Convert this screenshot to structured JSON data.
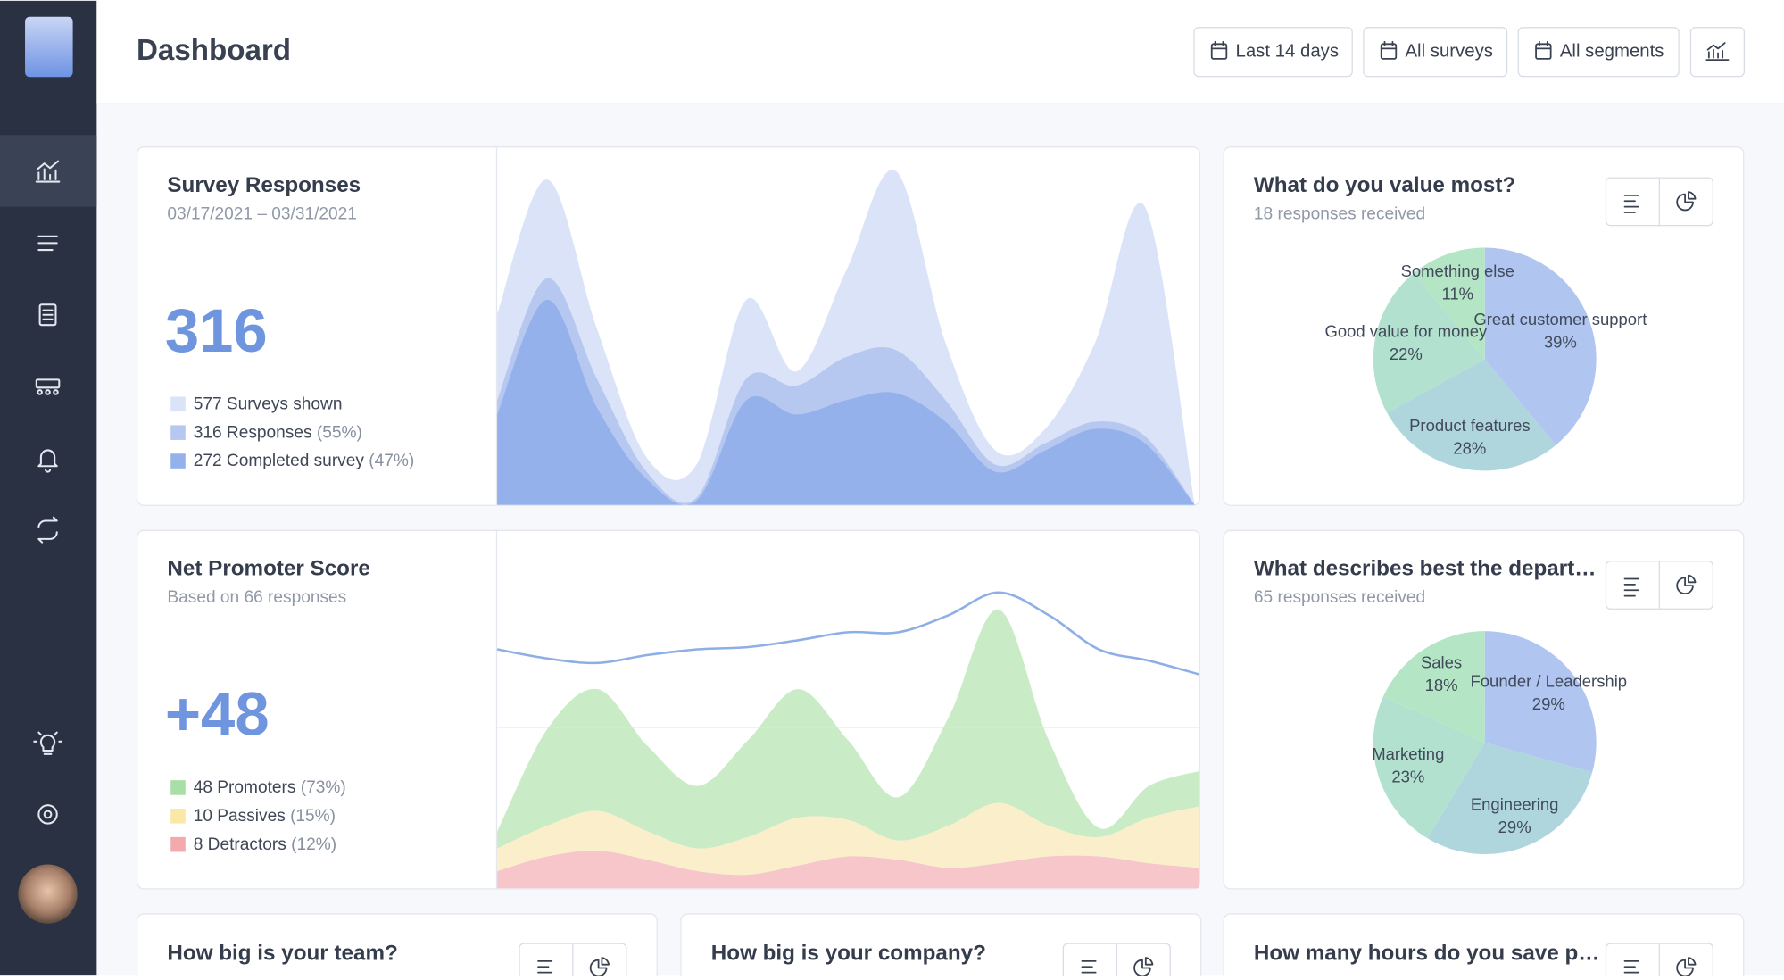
{
  "header": {
    "title": "Dashboard",
    "filters": [
      "Last 14 days",
      "All surveys",
      "All segments"
    ]
  },
  "survey_responses": {
    "title": "Survey Responses",
    "subtitle": "03/17/2021 – 03/31/2021",
    "total": "316",
    "legend": [
      {
        "label": "577 Surveys shown",
        "color": "#dae3f7"
      },
      {
        "label": "316 Responses",
        "pct": "(55%)",
        "color": "#b7c8f0"
      },
      {
        "label": "272 Completed survey",
        "pct": "(47%)",
        "color": "#95b1eb"
      }
    ],
    "chart": {
      "type": "area",
      "ylim": [
        0,
        250
      ],
      "series": [
        {
          "color": "#dae3f7",
          "values": [
            133,
            227,
            123,
            33,
            28,
            143,
            93,
            163,
            233,
            113,
            38,
            53,
            113,
            208,
            0
          ]
        },
        {
          "color": "#b7c8f0",
          "values": [
            73,
            158,
            88,
            23,
            5,
            88,
            83,
            103,
            108,
            73,
            28,
            43,
            58,
            48,
            0
          ]
        },
        {
          "color": "#95b1eb",
          "values": [
            63,
            143,
            68,
            18,
            3,
            73,
            63,
            73,
            78,
            58,
            23,
            38,
            53,
            43,
            0
          ]
        }
      ]
    }
  },
  "nps": {
    "title": "Net Promoter Score",
    "subtitle": "Based on 66 responses",
    "total": "+48",
    "legend": [
      {
        "label": "48 Promoters",
        "pct": "(73%)",
        "color": "#a8dfa6"
      },
      {
        "label": "10 Passives",
        "pct": "(15%)",
        "color": "#fbe7a6"
      },
      {
        "label": "8 Detractors",
        "pct": "(12%)",
        "color": "#f3a9ae"
      }
    ],
    "chart": {
      "type": "stacked-area",
      "ylim": [
        0,
        315
      ],
      "series": [
        {
          "color": "#f6c6ca",
          "values": [
            15,
            28,
            33,
            25,
            15,
            12,
            20,
            28,
            25,
            18,
            22,
            28,
            28,
            22,
            18
          ]
        },
        {
          "color": "#fbeecb",
          "values": [
            20,
            27,
            35,
            25,
            20,
            33,
            42,
            32,
            17,
            37,
            53,
            27,
            17,
            40,
            54
          ]
        },
        {
          "color": "#c9ebc5",
          "values": [
            15,
            85,
            107,
            75,
            55,
            85,
            113,
            70,
            38,
            95,
            170,
            75,
            8,
            28,
            31
          ]
        }
      ],
      "line": {
        "color": "#8eaee6",
        "values": [
          210,
          202,
          198,
          205,
          210,
          212,
          218,
          225,
          225,
          240,
          260,
          240,
          210,
          200,
          188
        ]
      }
    }
  },
  "pies": [
    {
      "title": "What do you value most?",
      "subtitle": "18 responses received",
      "chart": {
        "type": "pie",
        "categories": [
          "Great customer support",
          "Product features",
          "Good value for money",
          "Something else"
        ],
        "values": [
          39,
          28,
          22,
          11
        ],
        "value_labels": [
          "39%",
          "28%",
          "22%",
          "11%"
        ],
        "colors": [
          "#b1c5f1",
          "#afd5dd",
          "#b2e1cf",
          "#b4e6c6"
        ]
      }
    },
    {
      "title": "What describes best the depart…",
      "subtitle": "65 responses received",
      "chart": {
        "type": "pie",
        "categories": [
          "Founder / Leadership",
          "Engineering",
          "Marketing",
          "Sales"
        ],
        "values": [
          29,
          29,
          23,
          18
        ],
        "value_labels": [
          "29%",
          "29%",
          "23%",
          "18%"
        ],
        "colors": [
          "#b1c5f1",
          "#afd5dd",
          "#b2e1cf",
          "#b4e6c6"
        ]
      }
    }
  ],
  "bottom_cards": [
    {
      "title": "How big is your team?"
    },
    {
      "title": "How big is your company?"
    },
    {
      "title": "How many hours do you save p…"
    }
  ]
}
